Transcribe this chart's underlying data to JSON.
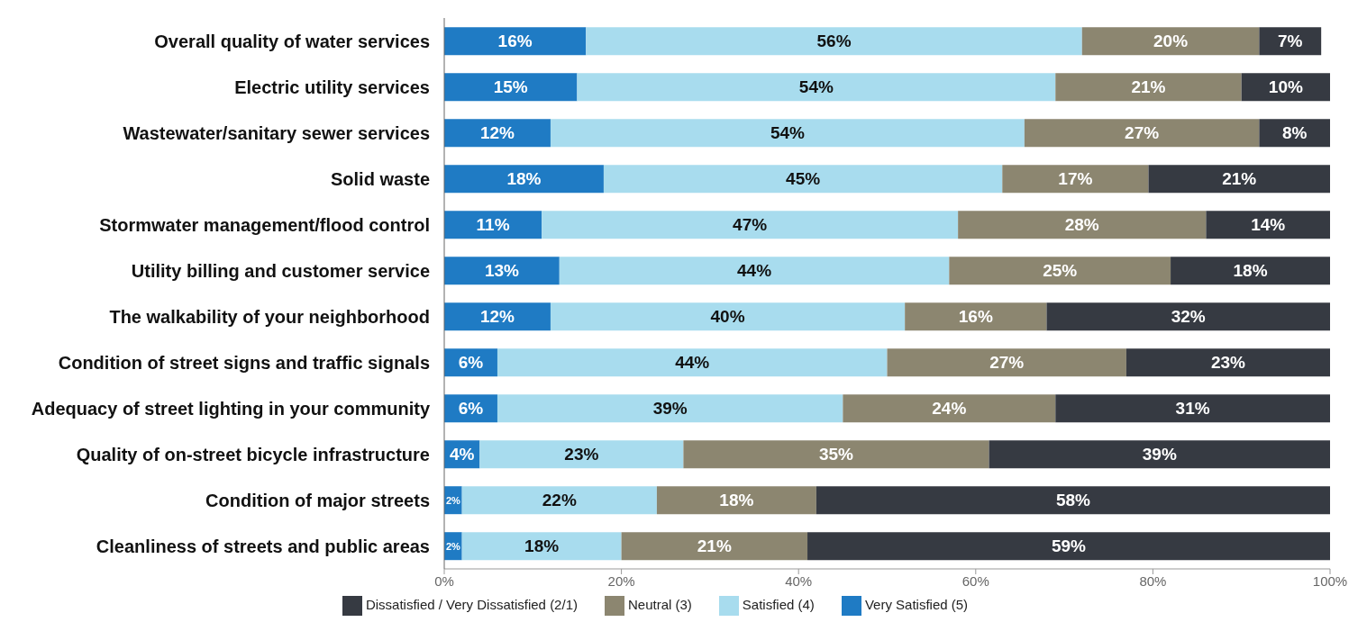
{
  "chart_data": {
    "type": "bar",
    "orientation": "horizontal",
    "stacked": true,
    "grid": false,
    "legend": "bottom",
    "categories": [
      "Overall quality of water services",
      "Electric utility services",
      "Wastewater/sanitary sewer services",
      "Solid waste",
      "Stormwater management/flood control",
      "Utility billing and customer service",
      "The walkability of your neighborhood",
      "Condition of street signs and traffic signals",
      "Adequacy of street lighting in your community",
      "Quality of on-street bicycle infrastructure",
      "Condition of major streets",
      "Cleanliness of streets and public areas"
    ],
    "series": [
      {
        "name": "Very Satisfied (5)",
        "color": "#1f7bc4",
        "values": [
          16,
          15,
          12,
          18,
          11,
          13,
          12,
          6,
          6,
          4,
          2,
          2
        ],
        "value_labels": [
          "16%",
          "15%",
          "12%",
          "18%",
          "11%",
          "13%",
          "12%",
          "6%",
          "6%",
          "4%",
          "2%",
          "2%"
        ]
      },
      {
        "name": "Satisfied (4)",
        "color": "#a8dcee",
        "values": [
          56,
          54,
          53.5,
          45,
          47,
          44,
          40,
          44,
          39,
          23,
          22,
          18
        ],
        "value_labels": [
          "56%",
          "54%",
          "54%",
          "45%",
          "47%",
          "44%",
          "40%",
          "44%",
          "39%",
          "23%",
          "22%",
          "18%"
        ]
      },
      {
        "name": "Neutral (3)",
        "color": "#8c8670",
        "values": [
          20,
          21,
          26.5,
          16.5,
          28,
          25,
          16,
          27,
          24,
          34.5,
          18,
          21
        ],
        "value_labels": [
          "20%",
          "21%",
          "27%",
          "17%",
          "28%",
          "25%",
          "16%",
          "27%",
          "24%",
          "35%",
          "18%",
          "21%"
        ]
      },
      {
        "name": "Dissatisfied / Very Dissatisfied (2/1)",
        "color": "#363a42",
        "values": [
          7,
          10,
          8,
          20.5,
          14,
          18,
          32,
          23,
          31,
          38.5,
          58,
          59
        ],
        "value_labels": [
          "7%",
          "10%",
          "8%",
          "21%",
          "14%",
          "18%",
          "32%",
          "23%",
          "31%",
          "39%",
          "58%",
          "59%"
        ]
      }
    ],
    "xlim": [
      0,
      100
    ],
    "xticks": [
      {
        "value": 0,
        "label": "0%"
      },
      {
        "value": 20,
        "label": "20%"
      },
      {
        "value": 40,
        "label": "40%"
      },
      {
        "value": 60,
        "label": "60%"
      },
      {
        "value": 80,
        "label": "80%"
      },
      {
        "value": 100,
        "label": "100%"
      }
    ]
  }
}
